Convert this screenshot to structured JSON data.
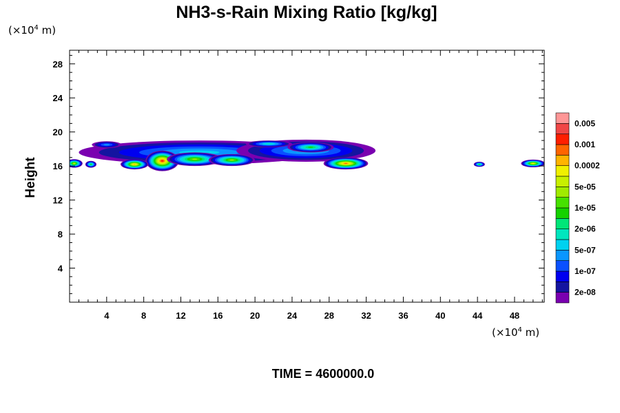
{
  "chart_data": {
    "type": "heatmap",
    "title": "NH3-s-Rain Mixing Ratio [kg/kg]",
    "xlabel": "",
    "ylabel": "Height",
    "x_unit": "(×10⁴ m)",
    "y_unit": "(×10⁴ m)",
    "x_unit_prefix": "(×10",
    "x_unit_exp": "4",
    "x_unit_suffix": " m)",
    "y_unit_prefix": "(×10",
    "y_unit_exp": "4",
    "y_unit_suffix": " m)",
    "xlim": [
      0,
      51.2
    ],
    "ylim": [
      0,
      29.6
    ],
    "x_ticks": [
      4,
      8,
      12,
      16,
      20,
      24,
      28,
      32,
      36,
      40,
      44,
      48
    ],
    "x_tick_labels": [
      "4",
      "8",
      "12",
      "16",
      "20",
      "24",
      "28",
      "32",
      "36",
      "40",
      "44",
      "48"
    ],
    "y_ticks": [
      4,
      8,
      12,
      16,
      20,
      24,
      28
    ],
    "y_tick_labels": [
      "4",
      "8",
      "12",
      "16",
      "20",
      "24",
      "28"
    ],
    "footer": "TIME = 4600000.0",
    "colorbar": {
      "colors": [
        "#7a00b0",
        "#1414a0",
        "#0000f0",
        "#0a50ff",
        "#0a96ff",
        "#00d2f0",
        "#00e6be",
        "#00e678",
        "#14d200",
        "#46e100",
        "#a0eb00",
        "#c8f000",
        "#f0f000",
        "#ffb400",
        "#ff6400",
        "#ff1e00",
        "#f04646",
        "#ff9696"
      ],
      "labels": [
        "2e-08",
        "1e-07",
        "5e-07",
        "2e-06",
        "1e-05",
        "5e-05",
        "0.0002",
        "0.001",
        "0.005"
      ]
    },
    "features": [
      {
        "x": 14.0,
        "y": 17.6,
        "wx": 13.0,
        "wy": 1.4,
        "level": 5
      },
      {
        "x": 25.5,
        "y": 17.8,
        "wx": 7.5,
        "wy": 1.3,
        "level": 5
      },
      {
        "x": 10.0,
        "y": 16.6,
        "wx": 1.8,
        "wy": 1.2,
        "level": 15
      },
      {
        "x": 7.0,
        "y": 16.2,
        "wx": 1.5,
        "wy": 0.6,
        "level": 13
      },
      {
        "x": 13.5,
        "y": 16.8,
        "wx": 3.0,
        "wy": 0.8,
        "level": 10
      },
      {
        "x": 17.5,
        "y": 16.7,
        "wx": 2.5,
        "wy": 0.7,
        "level": 10
      },
      {
        "x": 29.8,
        "y": 16.3,
        "wx": 2.4,
        "wy": 0.7,
        "level": 14
      },
      {
        "x": 26.0,
        "y": 18.2,
        "wx": 2.5,
        "wy": 0.6,
        "level": 8
      },
      {
        "x": 4.0,
        "y": 18.5,
        "wx": 1.6,
        "wy": 0.4,
        "level": 4
      },
      {
        "x": 21.5,
        "y": 18.6,
        "wx": 2.5,
        "wy": 0.4,
        "level": 6
      },
      {
        "x": 0.5,
        "y": 16.3,
        "wx": 0.9,
        "wy": 0.5,
        "level": 11
      },
      {
        "x": 2.3,
        "y": 16.2,
        "wx": 0.6,
        "wy": 0.4,
        "level": 8
      },
      {
        "x": 44.2,
        "y": 16.2,
        "wx": 0.6,
        "wy": 0.3,
        "level": 8
      },
      {
        "x": 50.0,
        "y": 16.3,
        "wx": 1.3,
        "wy": 0.45,
        "level": 12
      }
    ]
  }
}
